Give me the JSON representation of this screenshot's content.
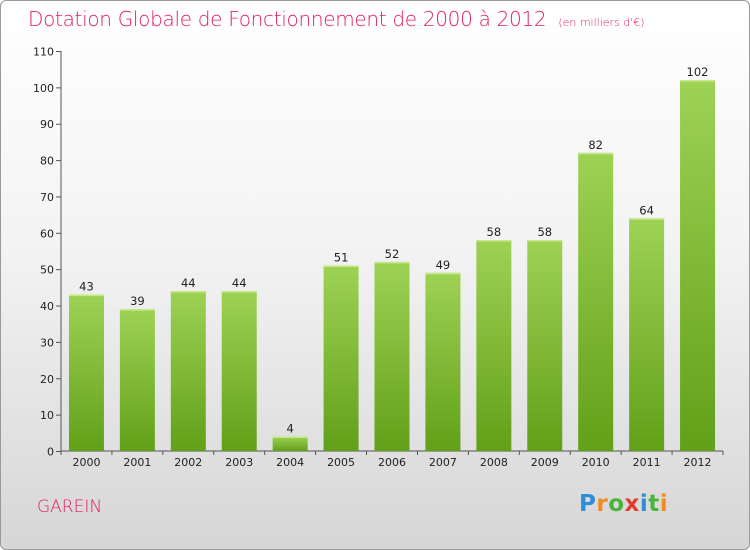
{
  "header": {
    "title": "Dotation Globale de Fonctionnement de 2000 à 2012",
    "unit": "(en milliers d'€)"
  },
  "footer": {
    "commune": "GAREIN",
    "logo_letters": [
      {
        "ch": "P",
        "color": "#2f8fd6"
      },
      {
        "ch": "r",
        "color": "#f28c1e"
      },
      {
        "ch": "o",
        "color": "#49b43c"
      },
      {
        "ch": "x",
        "color": "#e23b2e"
      },
      {
        "ch": "i",
        "color": "#2f8fd6"
      },
      {
        "ch": "t",
        "color": "#49b43c"
      },
      {
        "ch": "i",
        "color": "#f28c1e"
      }
    ]
  },
  "colors": {
    "bar_top": "#9ed255",
    "bar_bottom": "#62a019",
    "accent": "#e0205e"
  },
  "chart_data": {
    "type": "bar",
    "title": "Dotation Globale de Fonctionnement de 2000 à 2012",
    "subtitle": "(en milliers d'€)",
    "categories": [
      "2000",
      "2001",
      "2002",
      "2003",
      "2004",
      "2005",
      "2006",
      "2007",
      "2008",
      "2009",
      "2010",
      "2011",
      "2012"
    ],
    "values": [
      43,
      39,
      44,
      44,
      4,
      51,
      52,
      49,
      58,
      58,
      82,
      64,
      102
    ],
    "ylim": [
      0,
      110
    ],
    "yticks": [
      0,
      10,
      20,
      30,
      40,
      50,
      60,
      70,
      80,
      90,
      100,
      110
    ],
    "grid": false,
    "legend": "none"
  }
}
